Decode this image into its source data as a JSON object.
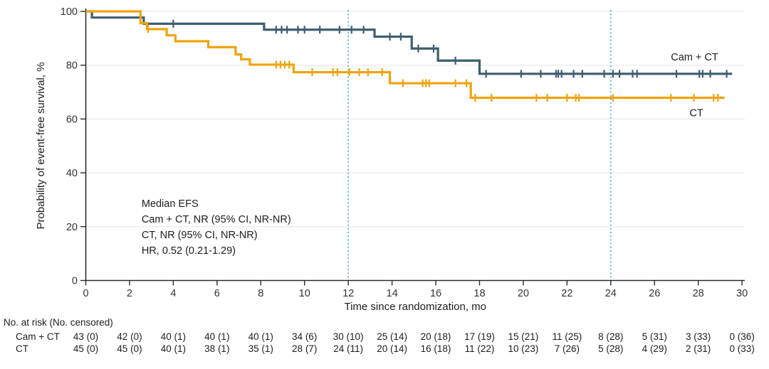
{
  "chart_data": {
    "type": "line",
    "variant": "kaplan_meier_step",
    "title": "",
    "xlabel": "Time since randomization, mo",
    "ylabel": "Probability of event-free survival, %",
    "xlim": [
      0,
      30
    ],
    "ylim": [
      0,
      100
    ],
    "xticks": [
      0,
      2,
      4,
      6,
      8,
      10,
      12,
      14,
      16,
      18,
      20,
      22,
      24,
      26,
      28,
      30
    ],
    "yticks": [
      0,
      20,
      40,
      60,
      80,
      100
    ],
    "grid": {
      "horizontal": true,
      "color": "#e9e9e9"
    },
    "legend_position": "labels-on-curves",
    "reference_lines": [
      {
        "axis": "x",
        "value": 12,
        "style": "dotted",
        "color": "#45b6e8"
      },
      {
        "axis": "x",
        "value": 24,
        "style": "dotted",
        "color": "#45b6e8"
      }
    ],
    "series": [
      {
        "name": "Cam + CT",
        "color": "#3f5d6f",
        "steps": [
          [
            0,
            100
          ],
          [
            0.28,
            97.7
          ],
          [
            2.65,
            95.4
          ],
          [
            8.15,
            93.2
          ],
          [
            13.2,
            90.6
          ],
          [
            14.9,
            86.2
          ],
          [
            16.1,
            81.7
          ],
          [
            18.0,
            76.8
          ]
        ],
        "end_time": 29.55,
        "censor_times": [
          4.0,
          8.7,
          8.95,
          9.2,
          9.7,
          10.0,
          10.7,
          11.6,
          12.15,
          12.7,
          13.9,
          14.4,
          15.2,
          15.9,
          16.9,
          18.3,
          19.9,
          20.8,
          21.5,
          21.6,
          21.75,
          22.3,
          22.7,
          23.7,
          24.1,
          24.4,
          25.0,
          25.2,
          27.0,
          28.05,
          28.2,
          28.55,
          29.3
        ],
        "label": {
          "text": "Cam + CT",
          "t": 26.75,
          "v": 81.8
        }
      },
      {
        "name": "CT",
        "color": "#f0a30b",
        "steps": [
          [
            0,
            100
          ],
          [
            2.5,
            95.6
          ],
          [
            2.8,
            93.4
          ],
          [
            3.7,
            91.1
          ],
          [
            4.1,
            88.9
          ],
          [
            5.6,
            86.7
          ],
          [
            6.85,
            84.0
          ],
          [
            7.1,
            82.2
          ],
          [
            7.5,
            80.2
          ],
          [
            9.5,
            77.4
          ],
          [
            13.9,
            73.3
          ],
          [
            17.6,
            67.9
          ]
        ],
        "end_time": 29.2,
        "censor_times": [
          2.85,
          8.7,
          8.9,
          9.1,
          9.3,
          10.35,
          11.3,
          11.5,
          12.05,
          12.5,
          12.9,
          13.55,
          14.5,
          15.4,
          15.55,
          15.7,
          16.9,
          17.4,
          17.8,
          18.55,
          20.6,
          21.1,
          22.0,
          22.4,
          22.55,
          24.1,
          26.75,
          27.8,
          28.7,
          28.9
        ],
        "label": {
          "text": "CT",
          "t": 27.6,
          "v": 61.0
        }
      }
    ],
    "annotation": {
      "lines": [
        "Median EFS",
        "Cam + CT, NR (95% CI, NR-NR)",
        "CT, NR (95% CI, NR-NR)",
        "HR, 0.52 (0.21-1.29)"
      ],
      "t": 2.55,
      "v_first_line": 27.3
    }
  },
  "risk_table": {
    "header": "No. at risk (No. censored)",
    "times": [
      0,
      2,
      4,
      6,
      8,
      10,
      12,
      14,
      16,
      18,
      20,
      22,
      24,
      26,
      28,
      30
    ],
    "rows": [
      {
        "label": "Cam + CT",
        "values": [
          "43 (0)",
          "42 (0)",
          "40 (1)",
          "40 (1)",
          "40 (1)",
          "34 (6)",
          "30 (10)",
          "25 (14)",
          "20 (18)",
          "17 (19)",
          "15 (21)",
          "11 (25)",
          "8 (28)",
          "5 (31)",
          "3 (33)",
          "0 (36)"
        ]
      },
      {
        "label": "CT",
        "values": [
          "45 (0)",
          "45 (0)",
          "40 (1)",
          "38 (1)",
          "35 (1)",
          "28 (7)",
          "24 (11)",
          "20 (14)",
          "16 (18)",
          "11 (22)",
          "10 (23)",
          "7 (26)",
          "5 (28)",
          "4 (29)",
          "2 (31)",
          "0 (33)"
        ]
      }
    ]
  },
  "style": {
    "axis_color": "#2b2b2b",
    "tick_text_color": "#333333",
    "text_color": "#1d1d1d",
    "background": "#ffffff"
  }
}
